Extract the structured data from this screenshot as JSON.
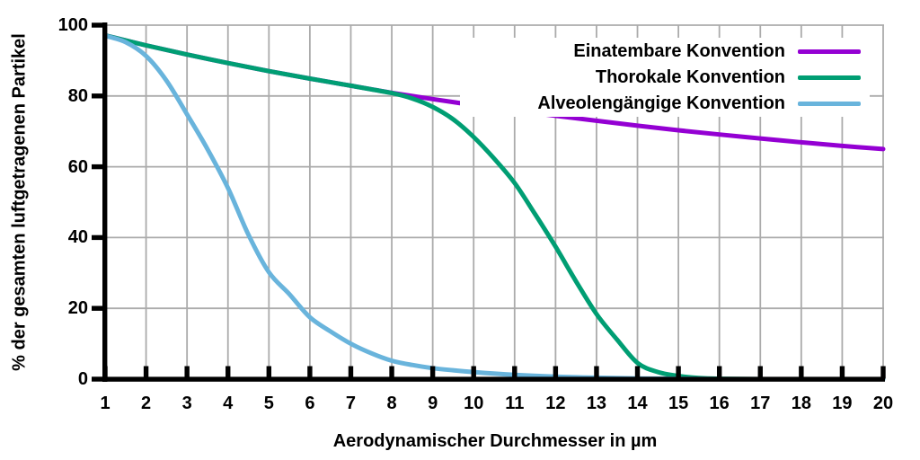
{
  "figure": {
    "background_color": "#ffffff",
    "text_color": "#000000"
  },
  "chart_data": {
    "type": "line",
    "title": "",
    "xlabel": "Aerodynamischer Durchmesser in µm",
    "ylabel": "% der gesamten luftgetragenen Partikel",
    "xlim": [
      1,
      20
    ],
    "ylim": [
      0,
      100
    ],
    "x_ticks": [
      1,
      2,
      3,
      4,
      5,
      6,
      7,
      8,
      9,
      10,
      11,
      12,
      13,
      14,
      15,
      16,
      17,
      18,
      19,
      20
    ],
    "y_ticks": [
      0,
      20,
      40,
      60,
      80,
      100
    ],
    "grid": "on",
    "grid_color": "#ababab",
    "axis_color": "#000000",
    "legend_position": "top-right",
    "series": [
      {
        "name": "Einatembare Konvention",
        "color": "#9400d3",
        "points": [
          [
            1,
            97.1
          ],
          [
            2,
            94.3
          ],
          [
            3,
            91.7
          ],
          [
            4,
            89.3
          ],
          [
            5,
            87.0
          ],
          [
            6,
            84.9
          ],
          [
            7,
            82.9
          ],
          [
            8,
            80.9
          ],
          [
            9,
            79.1
          ],
          [
            10,
            77.4
          ],
          [
            11,
            75.9
          ],
          [
            12,
            74.4
          ],
          [
            13,
            73.0
          ],
          [
            14,
            71.6
          ],
          [
            15,
            70.3
          ],
          [
            16,
            69.1
          ],
          [
            17,
            68.0
          ],
          [
            18,
            66.9
          ],
          [
            19,
            65.9
          ],
          [
            20,
            65.0
          ]
        ]
      },
      {
        "name": "Thorokale Konvention",
        "color": "#009e73",
        "points": [
          [
            1,
            97.1
          ],
          [
            2,
            94.3
          ],
          [
            3,
            91.7
          ],
          [
            4,
            89.3
          ],
          [
            5,
            87.0
          ],
          [
            6,
            84.9
          ],
          [
            7,
            82.9
          ],
          [
            8,
            80.8
          ],
          [
            8.5,
            79.3
          ],
          [
            9,
            76.9
          ],
          [
            9.5,
            73.4
          ],
          [
            10,
            68.4
          ],
          [
            10.5,
            62.3
          ],
          [
            11,
            55.4
          ],
          [
            11.5,
            46.6
          ],
          [
            12,
            37.4
          ],
          [
            12.5,
            27.6
          ],
          [
            13,
            18.4
          ],
          [
            13.5,
            11.2
          ],
          [
            14,
            4.6
          ],
          [
            14.5,
            2.0
          ],
          [
            15,
            0.9
          ],
          [
            15.5,
            0.3
          ],
          [
            16,
            0.1
          ],
          [
            17,
            0
          ],
          [
            18,
            0
          ],
          [
            19,
            0
          ],
          [
            20,
            0
          ]
        ]
      },
      {
        "name": "Alveolengängige Konvention",
        "color": "#69b4dc",
        "points": [
          [
            1,
            97.0
          ],
          [
            1.5,
            95.2
          ],
          [
            2,
            91.3
          ],
          [
            2.5,
            84.3
          ],
          [
            3,
            74.8
          ],
          [
            3.5,
            65.0
          ],
          [
            4,
            54.0
          ],
          [
            4.5,
            40.8
          ],
          [
            5,
            30.2
          ],
          [
            5.5,
            24.0
          ],
          [
            6,
            17.5
          ],
          [
            6.5,
            13.5
          ],
          [
            7,
            10.0
          ],
          [
            7.5,
            7.3
          ],
          [
            8,
            5.2
          ],
          [
            8.5,
            4.0
          ],
          [
            9,
            3.1
          ],
          [
            9.5,
            2.5
          ],
          [
            10,
            2.0
          ],
          [
            11,
            1.2
          ],
          [
            12,
            0.7
          ],
          [
            13,
            0.4
          ],
          [
            14,
            0.2
          ],
          [
            15,
            0.1
          ],
          [
            16,
            0
          ],
          [
            17,
            0
          ],
          [
            18,
            0
          ],
          [
            19,
            0
          ],
          [
            20,
            0
          ]
        ]
      }
    ]
  }
}
